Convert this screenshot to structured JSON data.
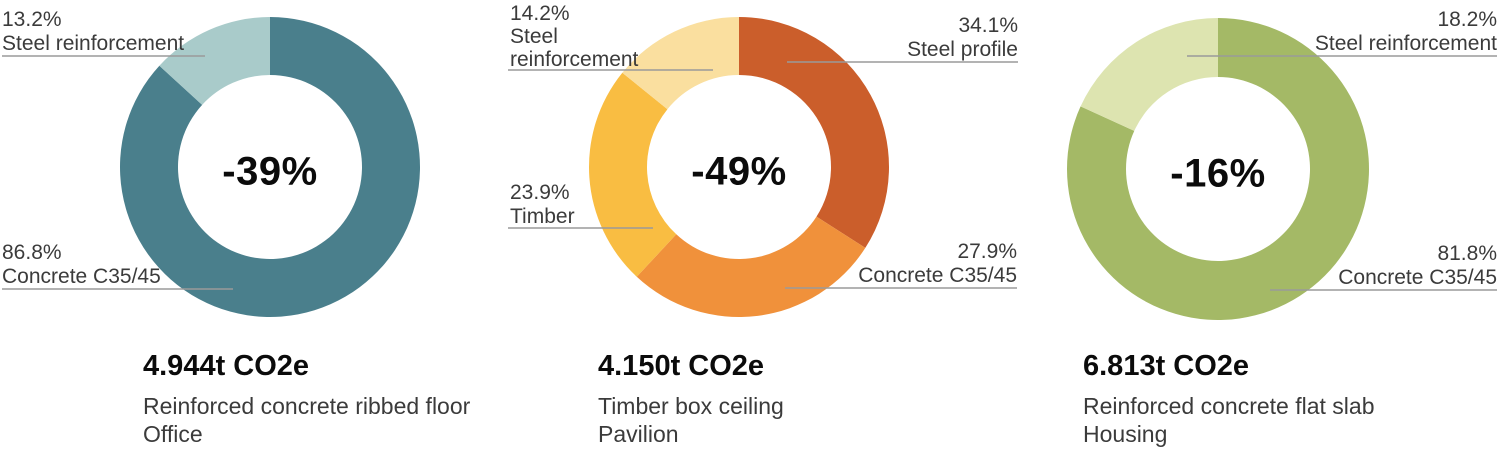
{
  "chart_data": [
    {
      "type": "pie",
      "subtype": "donut",
      "direction": "clockwise",
      "start_angle_deg": 0,
      "legend_position": "callout-labels",
      "center_label": "-39%",
      "title": "4.944t CO2e",
      "subtitle": "Reinforced concrete ribbed floor",
      "context": "Office",
      "labels": [
        "Concrete C35/45",
        "Steel reinforcement"
      ],
      "values": [
        86.8,
        13.2
      ],
      "value_labels": [
        "86.8%",
        "13.2%"
      ],
      "colors": [
        "#4A7F8C",
        "#A9CBCA"
      ]
    },
    {
      "type": "pie",
      "subtype": "donut",
      "direction": "clockwise",
      "start_angle_deg": 0,
      "legend_position": "callout-labels",
      "center_label": "-49%",
      "title": "4.150t CO2e",
      "subtitle": "Timber box ceiling",
      "context": "Pavilion",
      "labels": [
        "Steel profile",
        "Concrete C35/45",
        "Timber",
        "Steel reinforcement"
      ],
      "values": [
        34.1,
        27.9,
        23.9,
        14.2
      ],
      "value_labels": [
        "34.1%",
        "27.9%",
        "23.9%",
        "14.2%"
      ],
      "colors": [
        "#CB5E2B",
        "#F0913B",
        "#F9BD42",
        "#FADF9F"
      ]
    },
    {
      "type": "pie",
      "subtype": "donut",
      "direction": "clockwise",
      "start_angle_deg": 0,
      "legend_position": "callout-labels",
      "center_label": "-16%",
      "title": "6.813t CO2e",
      "subtitle": "Reinforced concrete flat slab",
      "context": "Housing",
      "labels": [
        "Concrete C35/45",
        "Steel reinforcement"
      ],
      "values": [
        81.8,
        18.2
      ],
      "value_labels": [
        "81.8%",
        "18.2%"
      ],
      "colors": [
        "#A4B966",
        "#DDE4B0"
      ]
    }
  ],
  "style": {
    "leader_line_color": "#9a9a9a",
    "annotation_text_color": "#3b3b3b",
    "emphasis_text_color": "#0b0b0b",
    "background_color": "#ffffff"
  }
}
